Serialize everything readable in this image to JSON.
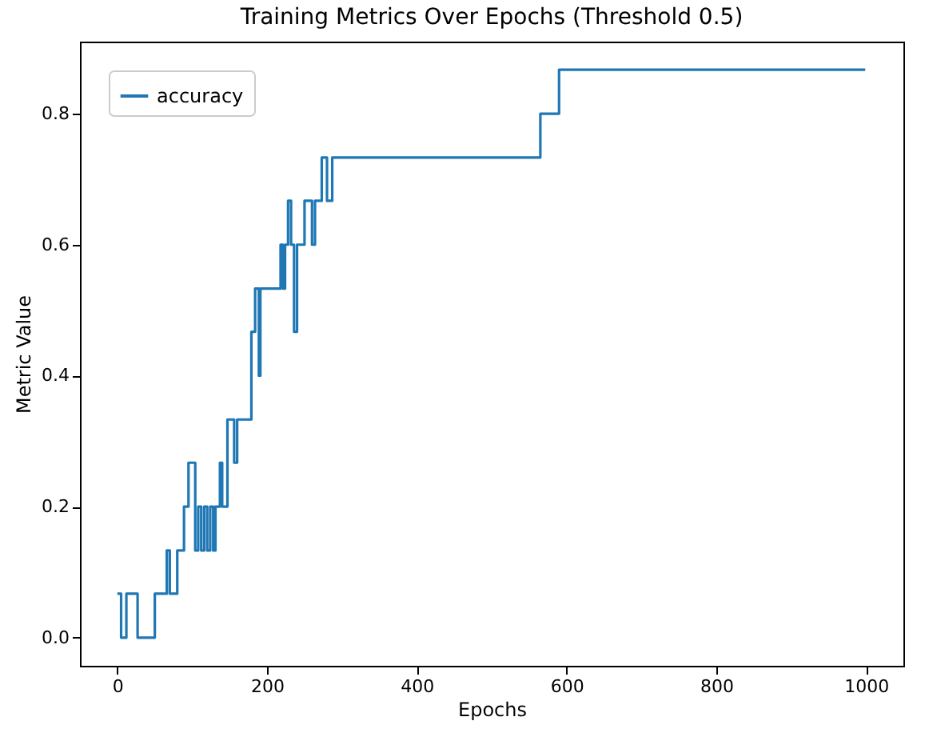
{
  "chart_data": {
    "type": "step",
    "title": "Training Metrics Over Epochs (Threshold 0.5)",
    "xlabel": "Epochs",
    "ylabel": "Metric Value",
    "x": [
      0,
      5,
      12,
      27,
      50,
      66,
      70,
      80,
      89,
      95,
      104,
      108,
      112,
      116,
      120,
      124,
      128,
      131,
      137,
      140,
      147,
      156,
      160,
      179,
      184,
      189,
      191,
      218,
      221,
      224,
      228,
      232,
      236,
      240,
      250,
      260,
      264,
      273,
      280,
      287,
      565,
      590,
      999
    ],
    "series": [
      {
        "name": "accuracy",
        "color": "#1f77b4",
        "values": [
          0.067,
          0,
          0.067,
          0,
          0.067,
          0.133,
          0.067,
          0.133,
          0.2,
          0.267,
          0.133,
          0.2,
          0.133,
          0.2,
          0.133,
          0.2,
          0.133,
          0.2,
          0.267,
          0.2,
          0.333,
          0.267,
          0.333,
          0.467,
          0.533,
          0.4,
          0.533,
          0.6,
          0.533,
          0.6,
          0.667,
          0.6,
          0.467,
          0.6,
          0.667,
          0.6,
          0.667,
          0.733,
          0.667,
          0.733,
          0.8,
          0.867,
          0.867
        ]
      }
    ],
    "xlim": [
      -50,
      1050
    ],
    "ylim": [
      -0.043,
      0.91
    ],
    "xticks": [
      0,
      200,
      400,
      600,
      800,
      1000
    ],
    "yticks": [
      {
        "value": 0,
        "label": "0.0"
      },
      0.2,
      0.4,
      0.6,
      0.8
    ],
    "legend": "top left",
    "grid": false,
    "marker": "none",
    "line_style": "solid"
  }
}
